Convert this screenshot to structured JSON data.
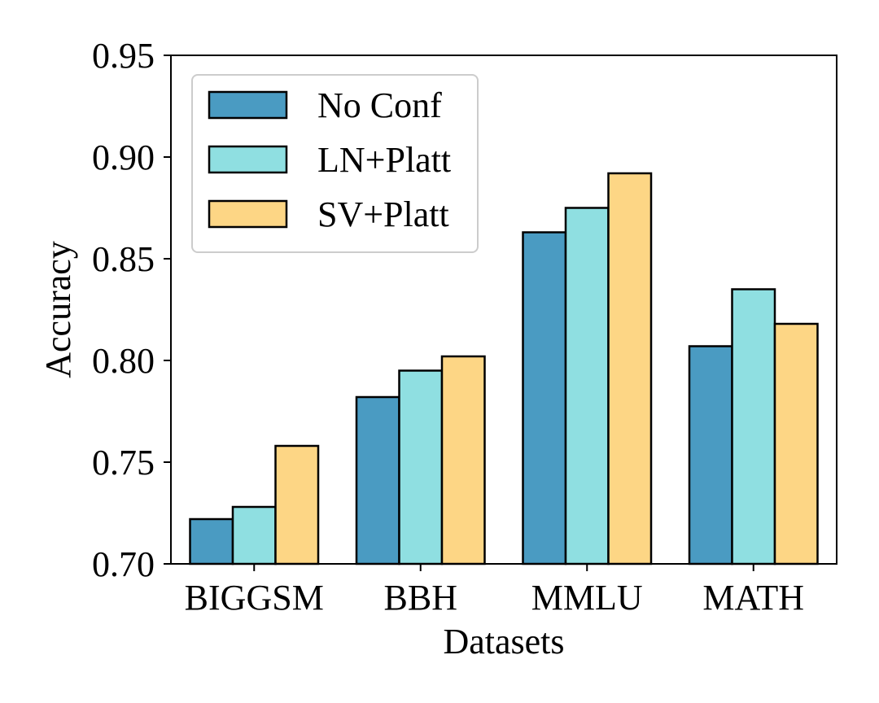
{
  "chart_data": {
    "type": "bar",
    "title": "",
    "xlabel": "Datasets",
    "ylabel": "Accuracy",
    "ylim": [
      0.7,
      0.95
    ],
    "yticks": [
      0.7,
      0.75,
      0.8,
      0.85,
      0.9,
      0.95
    ],
    "ytick_labels": [
      "0.70",
      "0.75",
      "0.80",
      "0.85",
      "0.90",
      "0.95"
    ],
    "categories": [
      "BIGGSM",
      "BBH",
      "MMLU",
      "MATH"
    ],
    "series": [
      {
        "name": "No Conf",
        "color": "#4a9bc2",
        "values": [
          0.722,
          0.782,
          0.863,
          0.807
        ]
      },
      {
        "name": "LN+Platt",
        "color": "#8fdfe1",
        "values": [
          0.728,
          0.795,
          0.875,
          0.835
        ]
      },
      {
        "name": "SV+Platt",
        "color": "#fdd685",
        "values": [
          0.758,
          0.802,
          0.892,
          0.818
        ]
      }
    ],
    "legend_position": "top-left",
    "grid": false
  }
}
